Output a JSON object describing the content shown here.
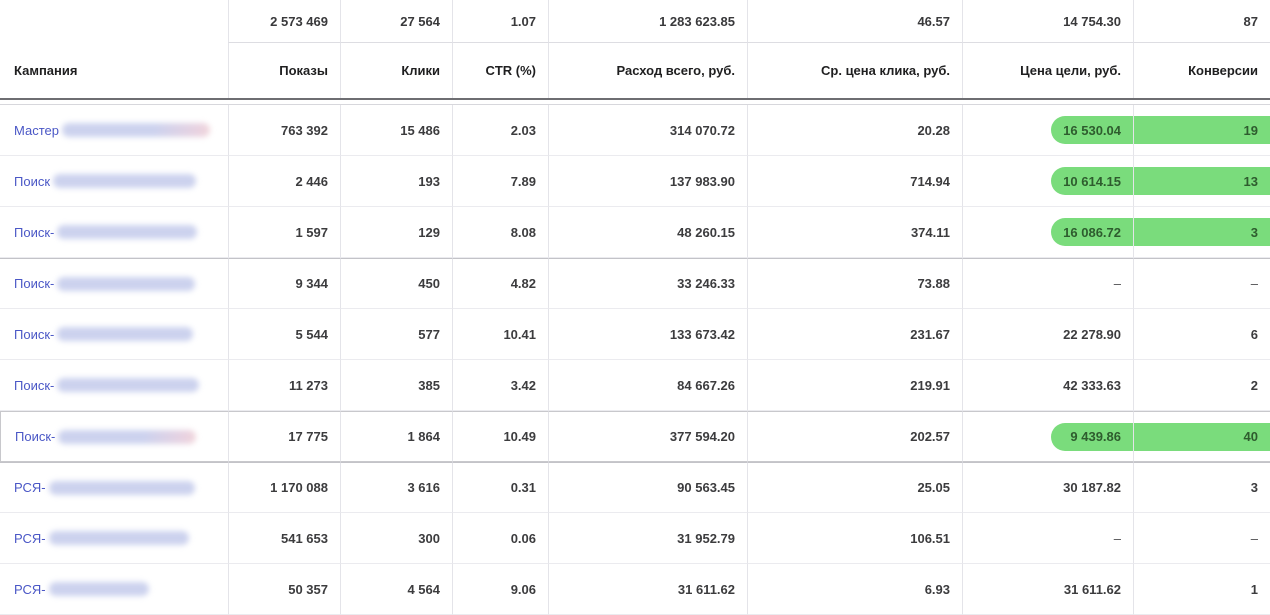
{
  "colors": {
    "highlight": "#7adc7c",
    "link": "#4a57c6"
  },
  "table": {
    "totals": {
      "impressions": "2 573 469",
      "clicks": "27 564",
      "ctr": "1.07",
      "cost": "1 283 623.85",
      "avg_cpc": "46.57",
      "goal_cost": "14 754.30",
      "conversions": "87"
    },
    "headers": {
      "campaign": "Кампания",
      "impressions": "Показы",
      "clicks": "Клики",
      "ctr": "CTR (%)",
      "cost": "Расход всего, руб.",
      "avg_cpc": "Ср. цена клика, руб.",
      "goal_cost": "Цена цели, руб.",
      "conversions": "Конверсии"
    },
    "rows": [
      {
        "prefix": "Мастер",
        "redacted": true,
        "blob_width": 148,
        "blob_pink": true,
        "impressions": "763 392",
        "clicks": "15 486",
        "ctr": "2.03",
        "cost": "314 070.72",
        "avg_cpc": "20.28",
        "goal_cost": "16 530.04",
        "conversions": "19",
        "highlight": true,
        "selected": false,
        "group_start": false
      },
      {
        "prefix": "Поиск",
        "redacted": true,
        "blob_width": 143,
        "blob_pink": false,
        "impressions": "2 446",
        "clicks": "193",
        "ctr": "7.89",
        "cost": "137 983.90",
        "avg_cpc": "714.94",
        "goal_cost": "10 614.15",
        "conversions": "13",
        "highlight": true,
        "selected": false,
        "group_start": false
      },
      {
        "prefix": "Поиск-",
        "redacted": true,
        "blob_width": 140,
        "blob_pink": false,
        "impressions": "1 597",
        "clicks": "129",
        "ctr": "8.08",
        "cost": "48 260.15",
        "avg_cpc": "374.11",
        "goal_cost": "16 086.72",
        "conversions": "3",
        "highlight": true,
        "selected": false,
        "group_start": false
      },
      {
        "prefix": "Поиск-",
        "redacted": true,
        "blob_width": 138,
        "blob_pink": false,
        "impressions": "9 344",
        "clicks": "450",
        "ctr": "4.82",
        "cost": "33 246.33",
        "avg_cpc": "73.88",
        "goal_cost": "–",
        "conversions": "–",
        "highlight": false,
        "selected": false,
        "group_start": true
      },
      {
        "prefix": "Поиск-",
        "redacted": true,
        "blob_width": 136,
        "blob_pink": false,
        "impressions": "5 544",
        "clicks": "577",
        "ctr": "10.41",
        "cost": "133 673.42",
        "avg_cpc": "231.67",
        "goal_cost": "22 278.90",
        "conversions": "6",
        "highlight": false,
        "selected": false,
        "group_start": false
      },
      {
        "prefix": "Поиск-",
        "redacted": true,
        "blob_width": 142,
        "blob_pink": false,
        "impressions": "11 273",
        "clicks": "385",
        "ctr": "3.42",
        "cost": "84 667.26",
        "avg_cpc": "219.91",
        "goal_cost": "42 333.63",
        "conversions": "2",
        "highlight": false,
        "selected": false,
        "group_start": false
      },
      {
        "prefix": "Поиск-",
        "redacted": true,
        "blob_width": 138,
        "blob_pink": true,
        "impressions": "17 775",
        "clicks": "1 864",
        "ctr": "10.49",
        "cost": "377 594.20",
        "avg_cpc": "202.57",
        "goal_cost": "9 439.86",
        "conversions": "40",
        "highlight": true,
        "selected": true,
        "group_start": false
      },
      {
        "prefix": "РСЯ-",
        "redacted": true,
        "blob_width": 146,
        "blob_pink": false,
        "impressions": "1 170 088",
        "clicks": "3 616",
        "ctr": "0.31",
        "cost": "90 563.45",
        "avg_cpc": "25.05",
        "goal_cost": "30 187.82",
        "conversions": "3",
        "highlight": false,
        "selected": false,
        "group_start": true
      },
      {
        "prefix": "РСЯ-",
        "redacted": true,
        "blob_width": 140,
        "blob_pink": false,
        "impressions": "541 653",
        "clicks": "300",
        "ctr": "0.06",
        "cost": "31 952.79",
        "avg_cpc": "106.51",
        "goal_cost": "–",
        "conversions": "–",
        "highlight": false,
        "selected": false,
        "group_start": false
      },
      {
        "prefix": "РСЯ-",
        "redacted": true,
        "blob_width": 100,
        "blob_pink": false,
        "impressions": "50 357",
        "clicks": "4 564",
        "ctr": "9.06",
        "cost": "31 611.62",
        "avg_cpc": "6.93",
        "goal_cost": "31 611.62",
        "conversions": "1",
        "highlight": false,
        "selected": false,
        "group_start": false
      }
    ]
  }
}
